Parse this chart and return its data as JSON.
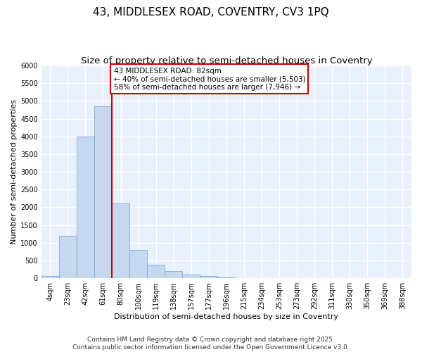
{
  "title_line1": "43, MIDDLESEX ROAD, COVENTRY, CV3 1PQ",
  "title_line2": "Size of property relative to semi-detached houses in Coventry",
  "xlabel": "Distribution of semi-detached houses by size in Coventry",
  "ylabel": "Number of semi-detached properties",
  "bar_color": "#c5d8f0",
  "bar_edge_color": "#7aaad4",
  "background_color": "#e8f0fb",
  "grid_color": "#ffffff",
  "categories": [
    "4sqm",
    "23sqm",
    "42sqm",
    "61sqm",
    "80sqm",
    "100sqm",
    "119sqm",
    "138sqm",
    "157sqm",
    "177sqm",
    "196sqm",
    "215sqm",
    "234sqm",
    "253sqm",
    "273sqm",
    "292sqm",
    "311sqm",
    "330sqm",
    "350sqm",
    "369sqm",
    "388sqm"
  ],
  "values": [
    70,
    1200,
    4000,
    4850,
    2100,
    800,
    390,
    200,
    110,
    55,
    20,
    10,
    5,
    2,
    1,
    0,
    0,
    0,
    0,
    0,
    0
  ],
  "annotation_text": "43 MIDDLESEX ROAD: 82sqm\n← 40% of semi-detached houses are smaller (5,503)\n58% of semi-detached houses are larger (7,946) →",
  "annotation_box_color": "#ffffff",
  "annotation_box_edge": "#cc0000",
  "vline_color": "#cc0000",
  "vline_x_index": 4,
  "ylim": [
    0,
    6000
  ],
  "yticks": [
    0,
    500,
    1000,
    1500,
    2000,
    2500,
    3000,
    3500,
    4000,
    4500,
    5000,
    5500,
    6000
  ],
  "footer_text": "Contains HM Land Registry data © Crown copyright and database right 2025.\nContains public sector information licensed under the Open Government Licence v3.0.",
  "title_fontsize": 11,
  "subtitle_fontsize": 9.5,
  "axis_label_fontsize": 8,
  "tick_fontsize": 7,
  "annotation_fontsize": 7.5,
  "footer_fontsize": 6.5
}
